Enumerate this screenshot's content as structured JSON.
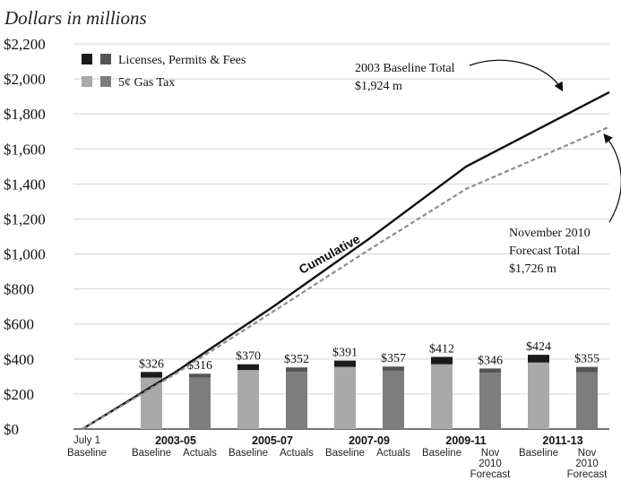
{
  "chart_data": {
    "type": "bar",
    "title": "Dollars in millions",
    "subtitle": "",
    "xlabel": "",
    "ylabel": "",
    "ylim": [
      0,
      2200
    ],
    "yticks": [
      0,
      200,
      400,
      600,
      800,
      1000,
      1200,
      1400,
      1600,
      1800,
      2000,
      2200
    ],
    "ytick_labels": [
      "$0",
      "$200",
      "$400",
      "$600",
      "$800",
      "$1,000",
      "$1,200",
      "$1,400",
      "$1,600",
      "$1,800",
      "$2,000",
      "$2,200"
    ],
    "grid": true,
    "legend_position": "top-left",
    "legend": [
      {
        "label": "Licenses, Permits & Fees",
        "colors": [
          "#1a1a1a",
          "#555555"
        ]
      },
      {
        "label": "5¢ Gas Tax",
        "colors": [
          "#a9a9a9",
          "#7d7d7d"
        ]
      }
    ],
    "periods": [
      "2003-05",
      "2005-07",
      "2007-09",
      "2009-11",
      "2011-13"
    ],
    "start_label": [
      "July 1",
      "Baseline"
    ],
    "bars": [
      {
        "period": "2003-05",
        "label": [
          "Baseline"
        ],
        "kind": "baseline",
        "gas_tax": 294,
        "licenses": 32,
        "total_label": "$326"
      },
      {
        "period": "2003-05",
        "label": [
          "Actuals"
        ],
        "kind": "forecast",
        "gas_tax": 293,
        "licenses": 23,
        "total_label": "$316"
      },
      {
        "period": "2005-07",
        "label": [
          "Baseline"
        ],
        "kind": "baseline",
        "gas_tax": 337,
        "licenses": 33,
        "total_label": "$370"
      },
      {
        "period": "2005-07",
        "label": [
          "Actuals"
        ],
        "kind": "forecast",
        "gas_tax": 327,
        "licenses": 25,
        "total_label": "$352"
      },
      {
        "period": "2007-09",
        "label": [
          "Baseline"
        ],
        "kind": "baseline",
        "gas_tax": 355,
        "licenses": 36,
        "total_label": "$391"
      },
      {
        "period": "2007-09",
        "label": [
          "Actuals"
        ],
        "kind": "forecast",
        "gas_tax": 333,
        "licenses": 24,
        "total_label": "$357"
      },
      {
        "period": "2009-11",
        "label": [
          "Baseline"
        ],
        "kind": "baseline",
        "gas_tax": 370,
        "licenses": 42,
        "total_label": "$412"
      },
      {
        "period": "2009-11",
        "label": [
          "Nov",
          "2010",
          "Forecast"
        ],
        "kind": "forecast",
        "gas_tax": 321,
        "licenses": 25,
        "total_label": "$346"
      },
      {
        "period": "2011-13",
        "label": [
          "Baseline"
        ],
        "kind": "baseline",
        "gas_tax": 380,
        "licenses": 44,
        "total_label": "$424"
      },
      {
        "period": "2011-13",
        "label": [
          "Nov",
          "2010",
          "Forecast"
        ],
        "kind": "forecast",
        "gas_tax": 325,
        "licenses": 30,
        "total_label": "$355"
      }
    ],
    "series": [
      {
        "name": "2003 Baseline Total",
        "style": "solid",
        "color": "#111111",
        "x": [
          "July 1",
          "2003-05",
          "2005-07",
          "2007-09",
          "2009-11",
          "2011-13"
        ],
        "values": [
          0,
          326,
          696,
          1087,
          1499,
          1924
        ]
      },
      {
        "name": "November 2010 Forecast Total",
        "style": "dashed",
        "color": "#8c8c8c",
        "x": [
          "July 1",
          "2003-05",
          "2005-07",
          "2007-09",
          "2009-11",
          "2011-13"
        ],
        "values": [
          0,
          316,
          668,
          1025,
          1371,
          1726
        ]
      }
    ],
    "annotations": {
      "cumulative": "Cumulative",
      "baseline_total": [
        "2003 Baseline Total",
        "$1,924 m"
      ],
      "forecast_total": [
        "November 2010",
        "Forecast Total",
        "$1,726 m"
      ]
    }
  }
}
